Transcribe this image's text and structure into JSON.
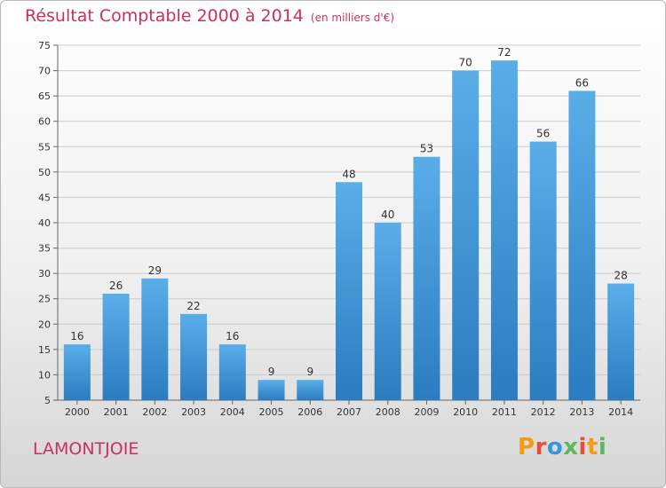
{
  "title": "Résultat Comptable 2000 à 2014",
  "unit_note": "(en milliers d'€)",
  "commune": "LAMONTJOIE",
  "brand": "Proxiti",
  "colors": {
    "title": "#c8325a",
    "bar_top": "#5aaee8",
    "bar_bottom": "#2b7cc0",
    "grid": "#cccccc"
  },
  "chart_data": {
    "type": "bar",
    "title": "Résultat Comptable 2000 à 2014",
    "subtitle": "(en milliers d'€)",
    "categories": [
      "2000",
      "2001",
      "2002",
      "2003",
      "2004",
      "2005",
      "2006",
      "2007",
      "2008",
      "2009",
      "2010",
      "2011",
      "2012",
      "2013",
      "2014"
    ],
    "values": [
      16,
      26,
      29,
      22,
      16,
      9,
      9,
      48,
      40,
      53,
      70,
      72,
      56,
      66,
      28
    ],
    "ylim": [
      5,
      75
    ],
    "yticks": [
      5,
      10,
      15,
      20,
      25,
      30,
      35,
      40,
      45,
      50,
      55,
      60,
      65,
      70,
      75
    ],
    "grid": true,
    "xlabel": "",
    "ylabel": ""
  }
}
